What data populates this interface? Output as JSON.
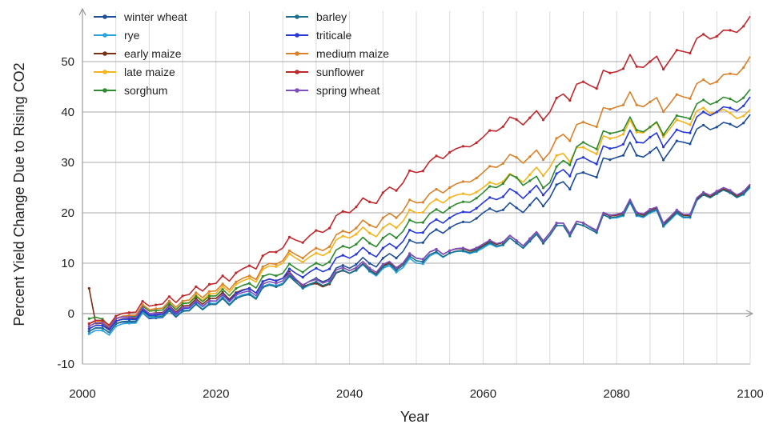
{
  "chart_data": {
    "type": "line",
    "title": "",
    "xlabel": "Year",
    "ylabel": "Percent Yield Change Due to Rising CO2",
    "xlim": [
      2000,
      2100
    ],
    "ylim": [
      -10,
      60
    ],
    "xticks": [
      2000,
      2020,
      2040,
      2060,
      2080,
      2100
    ],
    "yticks": [
      -10,
      0,
      10,
      20,
      30,
      40,
      50
    ],
    "grid": true,
    "legend_position": "top-left",
    "series": [
      {
        "name": "winter wheat",
        "color": "#1f4e99",
        "x": [
          2001,
          2005,
          2010,
          2015,
          2020,
          2025,
          2030,
          2035,
          2040,
          2045,
          2050,
          2055,
          2060,
          2065,
          2070,
          2075,
          2080,
          2085,
          2090,
          2095,
          2100
        ],
        "y": [
          -3.5,
          -2,
          -1,
          0.5,
          2,
          4,
          6,
          7,
          9,
          11,
          14,
          17,
          20,
          21,
          23,
          28,
          31,
          32,
          34,
          37,
          39.5
        ]
      },
      {
        "name": "rye",
        "color": "#29a3e0",
        "x": [
          2001,
          2005,
          2010,
          2015,
          2020,
          2025,
          2030,
          2035,
          2040,
          2045,
          2050,
          2055,
          2060,
          2065,
          2070,
          2075,
          2080,
          2085,
          2090,
          2095,
          2100
        ],
        "y": [
          -4,
          -2.5,
          -0.8,
          0.6,
          2,
          4,
          6,
          6,
          8,
          9,
          10,
          12,
          13,
          14,
          16,
          18,
          19,
          20,
          19,
          24,
          25
        ]
      },
      {
        "name": "early maize",
        "color": "#7a2e14",
        "x": [
          2001,
          2002,
          2005,
          2010,
          2015,
          2020,
          2025,
          2030,
          2035,
          2040,
          2045,
          2050,
          2055,
          2060,
          2065,
          2070,
          2075,
          2080,
          2085,
          2090,
          2095,
          2100
        ],
        "y": [
          5,
          -2,
          -1.5,
          0,
          1.5,
          3,
          5,
          7,
          6,
          8,
          9.5,
          11,
          12.5,
          13.5,
          14.5,
          16,
          18,
          19.5,
          20.5,
          19.5,
          24,
          25.5
        ]
      },
      {
        "name": "late maize",
        "color": "#f5b31c",
        "x": [
          2001,
          2005,
          2010,
          2015,
          2020,
          2025,
          2030,
          2035,
          2040,
          2045,
          2050,
          2055,
          2060,
          2065,
          2070,
          2075,
          2080,
          2085,
          2090,
          2095,
          2100
        ],
        "y": [
          -2.5,
          -1,
          0.5,
          2,
          4,
          7,
          10,
          12,
          15,
          17,
          20,
          23,
          25,
          27,
          29,
          33,
          35,
          37,
          38,
          40,
          40.5
        ]
      },
      {
        "name": "sorghum",
        "color": "#2e8b2e",
        "x": [
          2001,
          2005,
          2010,
          2015,
          2020,
          2025,
          2030,
          2035,
          2040,
          2045,
          2050,
          2055,
          2060,
          2065,
          2070,
          2075,
          2080,
          2085,
          2090,
          2095,
          2100
        ],
        "y": [
          -1,
          -1,
          0.5,
          2,
          3.5,
          6,
          8,
          10,
          13,
          15,
          18,
          21,
          24,
          27,
          26,
          34,
          36,
          37,
          39,
          42,
          44.5
        ]
      },
      {
        "name": "barley",
        "color": "#1c6f8f",
        "x": [
          2001,
          2005,
          2010,
          2015,
          2020,
          2025,
          2030,
          2035,
          2040,
          2045,
          2050,
          2055,
          2060,
          2065,
          2070,
          2075,
          2080,
          2085,
          2090,
          2095,
          2100
        ],
        "y": [
          -3.5,
          -2,
          -0.5,
          0.5,
          1.8,
          3.8,
          5.8,
          6.3,
          8,
          9.3,
          10.5,
          12,
          13.3,
          14,
          15.5,
          17.5,
          19.2,
          20.2,
          19.2,
          23.8,
          25.2
        ]
      },
      {
        "name": "triticale",
        "color": "#2638d9",
        "x": [
          2001,
          2005,
          2010,
          2015,
          2020,
          2025,
          2030,
          2035,
          2040,
          2045,
          2050,
          2055,
          2060,
          2065,
          2070,
          2075,
          2080,
          2085,
          2090,
          2095,
          2100
        ],
        "y": [
          -3,
          -1.5,
          -0.3,
          1,
          2.5,
          5,
          7,
          9,
          11,
          13,
          16,
          19,
          22,
          24,
          25,
          31,
          33,
          35,
          36,
          40,
          43
        ]
      },
      {
        "name": "medium maize",
        "color": "#d9822b",
        "x": [
          2001,
          2005,
          2010,
          2015,
          2020,
          2025,
          2030,
          2035,
          2040,
          2045,
          2050,
          2055,
          2060,
          2065,
          2070,
          2075,
          2080,
          2085,
          2090,
          2095,
          2100
        ],
        "y": [
          -2,
          -1,
          0.8,
          2.5,
          4.5,
          7.5,
          10.5,
          13,
          16,
          19,
          22,
          25,
          28,
          31,
          32,
          38,
          41,
          42,
          43,
          46,
          51
        ]
      },
      {
        "name": "sunflower",
        "color": "#c0282d",
        "x": [
          2001,
          2005,
          2010,
          2015,
          2020,
          2025,
          2030,
          2035,
          2040,
          2045,
          2050,
          2055,
          2060,
          2065,
          2070,
          2075,
          2080,
          2085,
          2090,
          2095,
          2100
        ],
        "y": [
          -2,
          -0.5,
          1.5,
          3.5,
          6,
          9.5,
          13,
          16.5,
          20,
          24,
          28,
          32,
          35,
          38.5,
          40,
          46,
          48,
          50,
          52,
          55,
          59
        ]
      },
      {
        "name": "spring wheat",
        "color": "#7e4fbf",
        "x": [
          2001,
          2005,
          2010,
          2015,
          2020,
          2025,
          2030,
          2035,
          2040,
          2045,
          2050,
          2055,
          2060,
          2065,
          2070,
          2075,
          2080,
          2085,
          2090,
          2095,
          2100
        ],
        "y": [
          -2.5,
          -1,
          0,
          1.2,
          2.5,
          4.5,
          6.5,
          6.8,
          8.5,
          9.8,
          11,
          12.5,
          13.8,
          14.5,
          16,
          18,
          19.7,
          20.7,
          19.7,
          24.3,
          25.7
        ]
      }
    ]
  }
}
